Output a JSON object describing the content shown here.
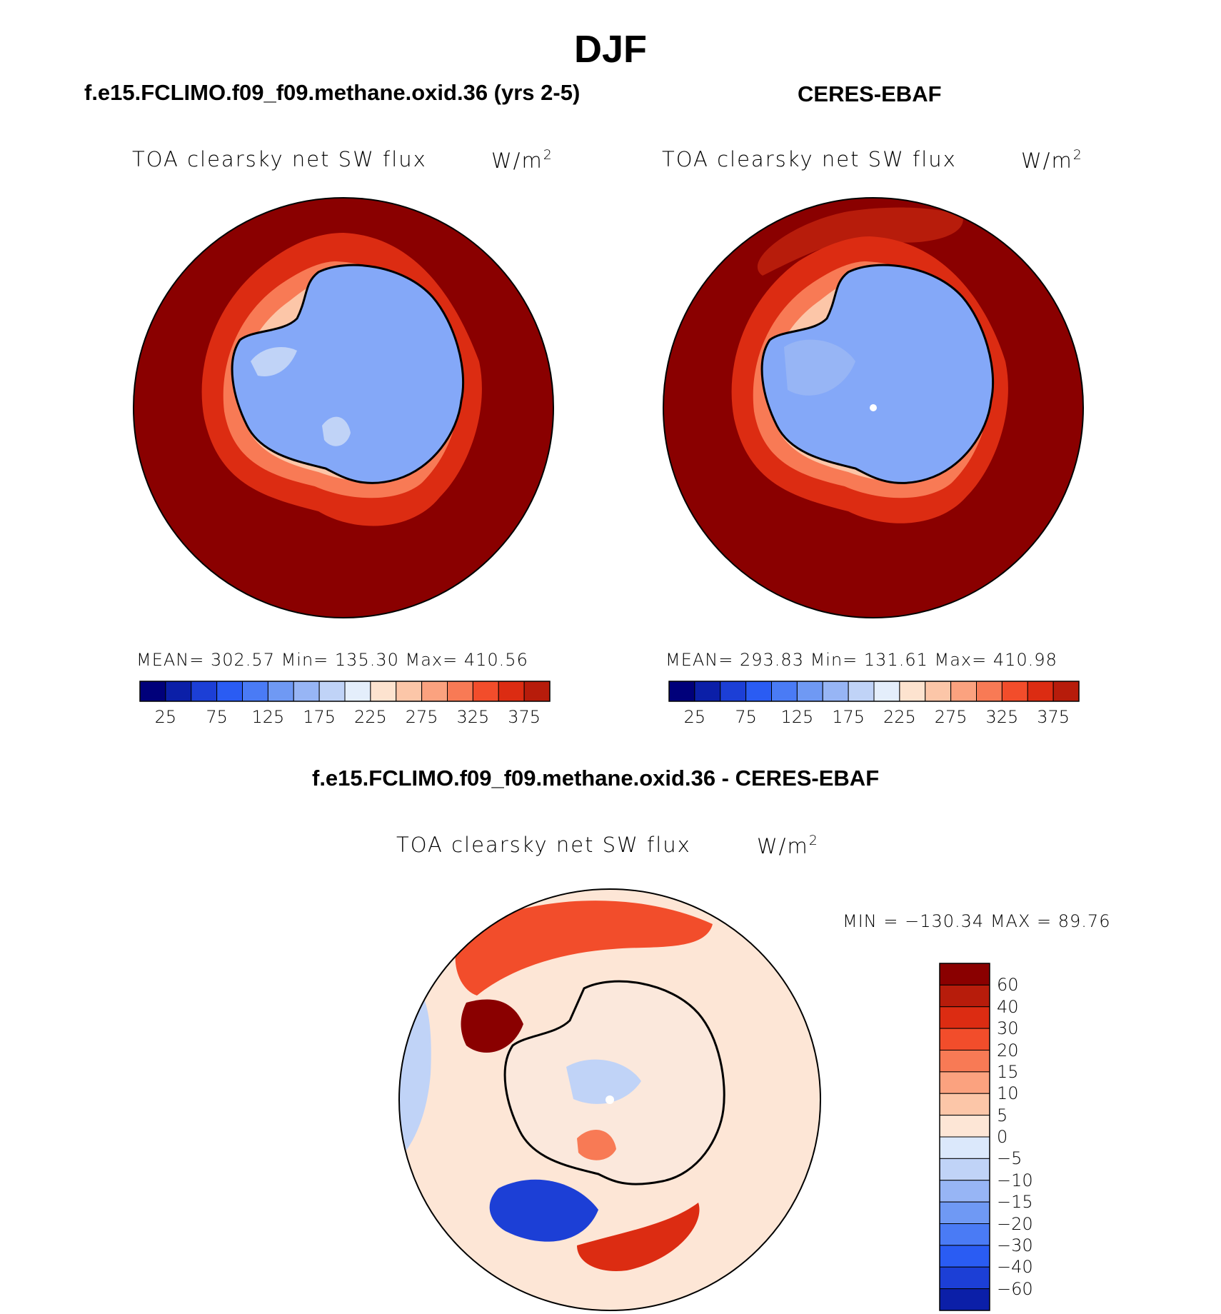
{
  "season": "DJF",
  "colors": {
    "abs_palette": [
      "#00007a",
      "#0b1fa8",
      "#1c3fd6",
      "#2a5cf3",
      "#4a7bf5",
      "#6f99f4",
      "#97b5f5",
      "#c0d3f7",
      "#e4eefb",
      "#fde3cf",
      "#fcc6a8",
      "#fba27f",
      "#f87a55",
      "#f24d2b",
      "#dc2c12",
      "#b71c0b",
      "#8a0000"
    ],
    "diff_palette": [
      "#00007a",
      "#0b1fa8",
      "#1c3fd6",
      "#2a5cf3",
      "#4a7bf5",
      "#6f99f4",
      "#97b5f5",
      "#c0d3f7",
      "#dbe8fb",
      "#fde6d6",
      "#fcc6a8",
      "#fba27f",
      "#f87a55",
      "#f24d2b",
      "#dc2c12",
      "#b71c0b",
      "#8a0000"
    ],
    "ocean_abs": "#8a0000",
    "land_abs": "#84a8f8",
    "diff_background": "#fde6d6"
  },
  "panels": {
    "model": {
      "title": "f.e15.FCLIMO.f09_f09.methane.oxid.36 (yrs 2-5)",
      "variable": "TOA clearsky net SW flux",
      "units": "W/m²",
      "stats": "MEAN= 302.57   Min= 135.30   Max= 410.56"
    },
    "obs": {
      "title": "CERES-EBAF",
      "variable": "TOA clearsky net SW flux",
      "units": "W/m²",
      "stats": "MEAN= 293.83   Min= 131.61   Max= 410.98"
    },
    "diff": {
      "title": "f.e15.FCLIMO.f09_f09.methane.oxid.36 - CERES-EBAF",
      "variable": "TOA clearsky net SW flux",
      "units": "W/m²",
      "stats": "MIN = −130.34 MAX =   89.76"
    }
  },
  "colorbar_abs": {
    "labels": [
      "25",
      "75",
      "125",
      "175",
      "225",
      "275",
      "325",
      "375"
    ]
  },
  "colorbar_diff": {
    "labels": [
      "60",
      "40",
      "30",
      "20",
      "15",
      "10",
      "5",
      "0",
      "−5",
      "−10",
      "−15",
      "−20",
      "−30",
      "−40",
      "−60"
    ]
  }
}
